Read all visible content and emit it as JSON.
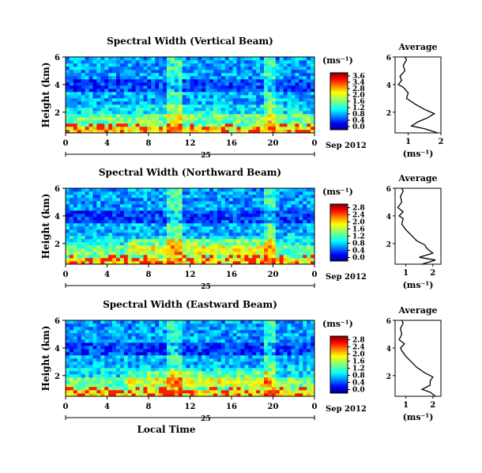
{
  "panels": [
    {
      "title": "Spectral Width (Vertical Beam)",
      "colorbar": {
        "unit": "(ms⁻¹)",
        "ticks": [
          "3.6",
          "3.4",
          "2.8",
          "2.0",
          "1.6",
          "1.2",
          "0.8",
          "0.4",
          "0.0"
        ]
      },
      "profile": {
        "title": "Average",
        "xticks": [
          "1",
          "2"
        ],
        "xlabel": "(ms⁻¹)"
      }
    },
    {
      "title": "Spectral Width (Northward Beam)",
      "colorbar": {
        "unit": "(ms⁻¹)",
        "ticks": [
          "2.8",
          "2.4",
          "2.0",
          "1.6",
          "1.2",
          "0.8",
          "0.4",
          "0.0"
        ]
      },
      "profile": {
        "title": "Average",
        "xticks": [
          "1",
          "2"
        ],
        "xlabel": "(ms⁻¹)"
      }
    },
    {
      "title": "Spectral Width (Eastward Beam)",
      "colorbar": {
        "unit": "(ms⁻¹)",
        "ticks": [
          "2.8",
          "2.4",
          "2.0",
          "1.6",
          "1.2",
          "0.8",
          "0.4",
          "0.0"
        ]
      },
      "profile": {
        "title": "Average",
        "xticks": [
          "1",
          "2"
        ],
        "xlabel": "(ms⁻¹)"
      }
    }
  ],
  "shared": {
    "ylabel": "Height (km)",
    "yticks": [
      "6",
      "4",
      "2"
    ],
    "xticks": [
      "0",
      "4",
      "8",
      "12",
      "16",
      "20",
      "0"
    ],
    "date_day": "25",
    "date_label": "Sep 2012",
    "xlabel": "Local Time",
    "profile_yticks": [
      "6",
      "4",
      "2"
    ]
  },
  "chart_data": [
    {
      "type": "heatmap",
      "title": "Spectral Width (Vertical Beam)",
      "xlabel": "",
      "ylabel": "Height (km)",
      "xlim": [
        0,
        24
      ],
      "ylim": [
        0.5,
        6
      ],
      "x_ticks": [
        0,
        4,
        8,
        12,
        16,
        20,
        24
      ],
      "y_ticks": [
        2,
        4,
        6
      ],
      "colorbar_range": [
        0,
        3.8
      ],
      "profile": {
        "title": "Average",
        "xlim": [
          0.6,
          2.0
        ],
        "heights": [
          0.5,
          0.8,
          1.0,
          1.3,
          1.6,
          1.9,
          2.2,
          2.6,
          3.0,
          3.4,
          3.8,
          4.0,
          4.3,
          4.6,
          5.0,
          5.4,
          5.8,
          6.0
        ],
        "values": [
          1.9,
          1.5,
          1.1,
          1.3,
          1.6,
          1.8,
          1.5,
          1.2,
          0.95,
          1.0,
          0.85,
          0.7,
          0.8,
          0.75,
          0.9,
          0.85,
          0.95,
          0.9
        ]
      }
    },
    {
      "type": "heatmap",
      "title": "Spectral Width (Northward Beam)",
      "xlabel": "",
      "ylabel": "Height (km)",
      "xlim": [
        0,
        24
      ],
      "ylim": [
        0.5,
        6
      ],
      "x_ticks": [
        0,
        4,
        8,
        12,
        16,
        20,
        24
      ],
      "y_ticks": [
        2,
        4,
        6
      ],
      "colorbar_range": [
        0,
        3.0
      ],
      "profile": {
        "title": "Average",
        "xlim": [
          0.6,
          2.3
        ],
        "heights": [
          0.5,
          0.8,
          1.0,
          1.3,
          1.6,
          1.9,
          2.2,
          2.6,
          3.0,
          3.4,
          3.8,
          4.0,
          4.3,
          4.6,
          5.0,
          5.4,
          5.8,
          6.0
        ],
        "values": [
          1.6,
          2.1,
          1.5,
          2.0,
          1.8,
          1.7,
          1.4,
          1.2,
          1.0,
          0.85,
          0.9,
          0.75,
          0.9,
          0.7,
          0.85,
          0.8,
          0.9,
          0.85
        ]
      }
    },
    {
      "type": "heatmap",
      "title": "Spectral Width (Eastward Beam)",
      "xlabel": "Local Time",
      "ylabel": "Height (km)",
      "xlim": [
        0,
        24
      ],
      "ylim": [
        0.5,
        6
      ],
      "x_ticks": [
        0,
        4,
        8,
        12,
        16,
        20,
        24
      ],
      "y_ticks": [
        2,
        4,
        6
      ],
      "colorbar_range": [
        0,
        3.0
      ],
      "profile": {
        "title": "Average",
        "xlim": [
          0.6,
          2.3
        ],
        "heights": [
          0.5,
          0.8,
          1.0,
          1.3,
          1.6,
          1.9,
          2.2,
          2.6,
          3.0,
          3.4,
          3.8,
          4.0,
          4.3,
          4.6,
          5.0,
          5.4,
          5.8,
          6.0
        ],
        "values": [
          2.1,
          1.9,
          1.6,
          1.9,
          1.9,
          2.0,
          1.7,
          1.4,
          1.2,
          1.0,
          0.85,
          0.8,
          0.95,
          0.75,
          0.85,
          0.8,
          0.9,
          0.85
        ]
      }
    }
  ]
}
